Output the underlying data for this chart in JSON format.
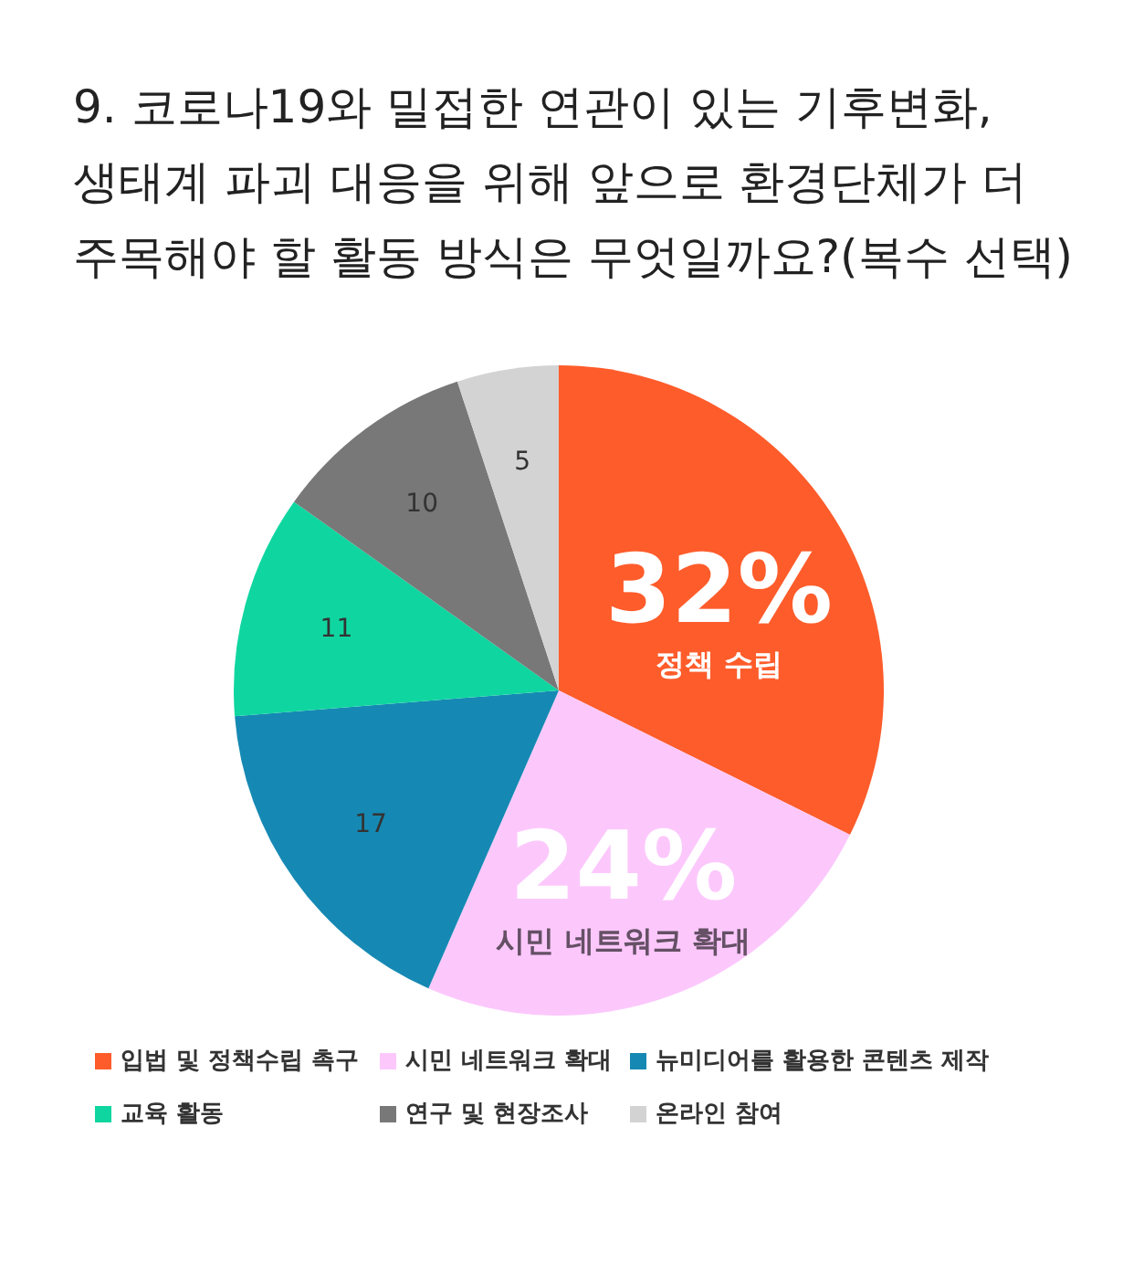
{
  "chart_data": {
    "type": "pie",
    "title": "9. 코로나19와 밀접한 연관이 있는 기후변화,\n생태계 파괴 대응을 위해 앞으로 환경단체가 더\n주목해야 할 활동 방식은 무엇일까요?(복수 선택)",
    "categories": [
      "입법 및 정책수립 촉구",
      "시민 네트워크 확대",
      "뉴미디어를 활용한 콘텐츠 제작",
      "교육 활동",
      "연구 및 현장조사",
      "온라인 참여"
    ],
    "values": [
      32,
      24,
      17,
      11,
      10,
      5
    ],
    "colors": [
      "#fe5c2b",
      "#fcc8fc",
      "#1589b3",
      "#0fd6a0",
      "#787878",
      "#d3d3d3"
    ],
    "value_labels": [
      "32%\n정책 수립",
      "24%\n시민 네트워크 확대",
      "17",
      "11",
      "10",
      "5"
    ],
    "legend": "bottom"
  }
}
